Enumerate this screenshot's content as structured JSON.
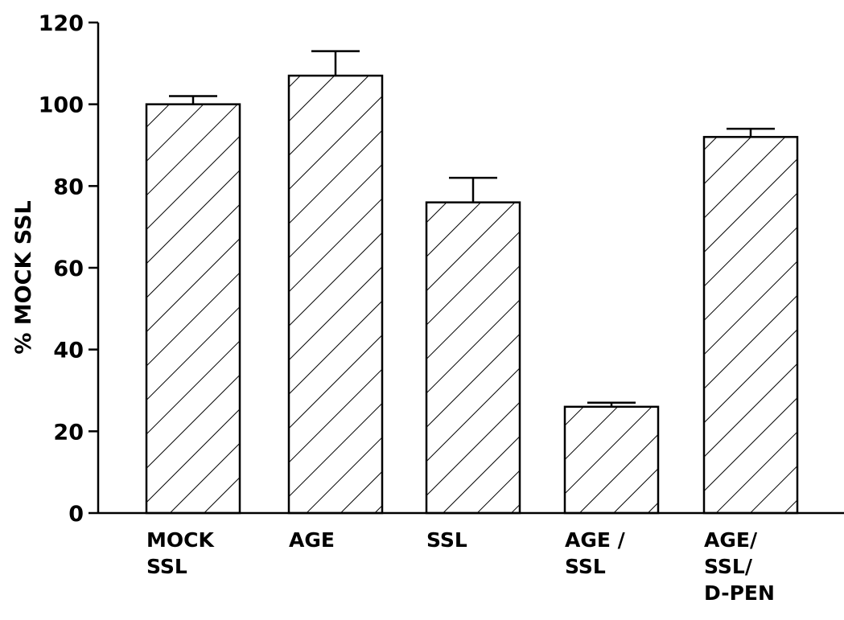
{
  "chart_data": {
    "type": "bar",
    "title": "",
    "xlabel": "",
    "ylabel": "% MOCK SSL",
    "ylim": [
      0,
      120
    ],
    "yticks": [
      "0",
      "20",
      "40",
      "60",
      "80",
      "100",
      "120"
    ],
    "categories": [
      [
        "MOCK",
        "SSL"
      ],
      [
        "AGE"
      ],
      [
        "SSL"
      ],
      [
        "AGE /",
        "SSL"
      ],
      [
        "AGE/",
        "SSL/",
        "D-PEN"
      ]
    ],
    "values": [
      100,
      107,
      76,
      26,
      92
    ],
    "error_upper": [
      102,
      113,
      82,
      27,
      94
    ],
    "bar_fill": "hatched",
    "grid": false,
    "legend": "none"
  }
}
